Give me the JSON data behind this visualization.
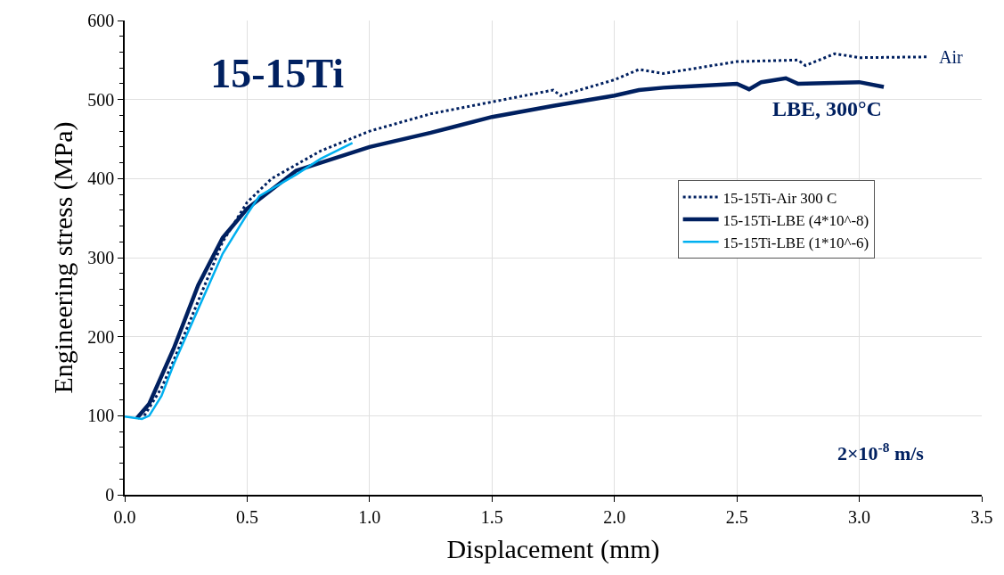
{
  "chart_data": {
    "type": "line",
    "title": "15-15Ti",
    "xlabel": "Displacement (mm)",
    "ylabel": "Engineering stress (MPa)",
    "xlim": [
      0,
      3.5
    ],
    "ylim": [
      0,
      600
    ],
    "xticks": [
      {
        "value": 0,
        "label": "0.0"
      },
      {
        "value": 0.5,
        "label": "0.5"
      },
      {
        "value": 1,
        "label": "1.0"
      },
      {
        "value": 1.5,
        "label": "1.5"
      },
      {
        "value": 2,
        "label": "2.0"
      },
      {
        "value": 2.5,
        "label": "2.5"
      },
      {
        "value": 3,
        "label": "3.0"
      },
      {
        "value": 3.5,
        "label": "3.5"
      }
    ],
    "yticks": [
      0,
      100,
      200,
      300,
      400,
      500,
      600
    ],
    "grid": true,
    "legend": "right",
    "marker": "none",
    "annotations": [
      {
        "text": "Air",
        "x": 3.28,
        "y": 554
      },
      {
        "text": "LBE, 300°C",
        "x": 3.1,
        "y": 516
      },
      "2×10$^{-8}$ m/s"
    ],
    "series": [
      {
        "name": "15-15Ti-Air 300 C",
        "color": "#002060",
        "line_style": "dotted",
        "x": [
          0.08,
          0.15,
          0.2,
          0.3,
          0.4,
          0.5,
          0.6,
          0.8,
          1.0,
          1.25,
          1.5,
          1.75,
          1.78,
          2.0,
          2.1,
          2.2,
          2.5,
          2.75,
          2.78,
          2.9,
          3.0,
          3.28
        ],
        "values": [
          100,
          135,
          170,
          245,
          320,
          370,
          400,
          435,
          460,
          482,
          497,
          512,
          505,
          525,
          538,
          533,
          548,
          550,
          543,
          558,
          553,
          554
        ]
      },
      {
        "name": "15-15Ti-LBE (4*10^-8)",
        "color": "#002060",
        "line_style": "solid",
        "x": [
          0.05,
          0.1,
          0.2,
          0.3,
          0.4,
          0.5,
          0.7,
          1.0,
          1.25,
          1.5,
          1.75,
          2.0,
          2.1,
          2.2,
          2.5,
          2.55,
          2.6,
          2.7,
          2.75,
          3.0,
          3.1
        ],
        "values": [
          97,
          115,
          185,
          265,
          325,
          362,
          410,
          440,
          458,
          478,
          492,
          505,
          512,
          515,
          520,
          513,
          522,
          527,
          520,
          522,
          516
        ]
      },
      {
        "name": "15-15Ti-LBE (1*10^-6)",
        "color": "#00b0f0",
        "line_style": "solid",
        "x": [
          0.0,
          0.07,
          0.1,
          0.15,
          0.2,
          0.3,
          0.4,
          0.5,
          0.55,
          0.7,
          0.8,
          0.93
        ],
        "values": [
          99,
          96,
          100,
          125,
          165,
          235,
          305,
          355,
          378,
          405,
          425,
          445
        ]
      }
    ]
  }
}
